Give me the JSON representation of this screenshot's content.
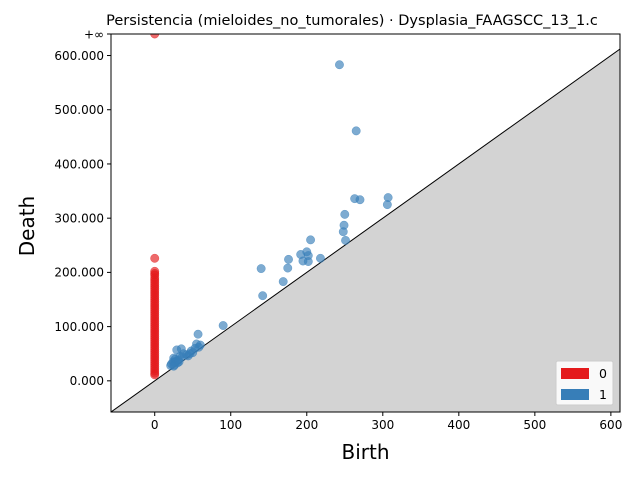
{
  "chart_data": {
    "type": "scatter",
    "title": "Persistencia (mieloides_no_tumorales) · Dysplasia_FAAGSCC_13_1.c",
    "xlabel": "Birth",
    "ylabel": "Death",
    "xlim": [
      -57.5,
      612
    ],
    "ylim": [
      -57.5,
      639.7
    ],
    "x_ticks": [
      0,
      100,
      200,
      300,
      400,
      500,
      600
    ],
    "x_tick_labels": [
      "0",
      "100",
      "200",
      "300",
      "400",
      "500",
      "600"
    ],
    "y_ticks": [
      0,
      100,
      200,
      300,
      400,
      500,
      600
    ],
    "y_tick_labels": [
      "0.000",
      "100.000",
      "200.000",
      "300.000",
      "400.000",
      "500.000",
      "600.000"
    ],
    "infinity_value": 639.7,
    "infinity_label": "+∞",
    "legend": {
      "position": "bottom-right",
      "entries": [
        "0",
        "1"
      ]
    },
    "colors": {
      "dim0": "#e41a1c",
      "dim1": "#377eb8",
      "diagonal_fill": "#d3d3d3",
      "infinity_line": "#808080"
    },
    "series": [
      {
        "name": "0",
        "points": [
          [
            0,
            639.7
          ],
          [
            0,
            226
          ],
          [
            0,
            202
          ],
          [
            0,
            198
          ],
          [
            0,
            195
          ],
          [
            0,
            190
          ],
          [
            0,
            186
          ],
          [
            0,
            182
          ],
          [
            0,
            178
          ],
          [
            0,
            174
          ],
          [
            0,
            170
          ],
          [
            0,
            166
          ],
          [
            0,
            162
          ],
          [
            0,
            158
          ],
          [
            0,
            154
          ],
          [
            0,
            150
          ],
          [
            0,
            146
          ],
          [
            0,
            142
          ],
          [
            0,
            138
          ],
          [
            0,
            134
          ],
          [
            0,
            130
          ],
          [
            0,
            126
          ],
          [
            0,
            122
          ],
          [
            0,
            118
          ],
          [
            0,
            114
          ],
          [
            0,
            110
          ],
          [
            0,
            106
          ],
          [
            0,
            102
          ],
          [
            0,
            98
          ],
          [
            0,
            94
          ],
          [
            0,
            90
          ],
          [
            0,
            86
          ],
          [
            0,
            82
          ],
          [
            0,
            78
          ],
          [
            0,
            74
          ],
          [
            0,
            70
          ],
          [
            0,
            66
          ],
          [
            0,
            62
          ],
          [
            0,
            58
          ],
          [
            0,
            54
          ],
          [
            0,
            50
          ],
          [
            0,
            46
          ],
          [
            0,
            42
          ],
          [
            0,
            38
          ],
          [
            0,
            34
          ],
          [
            0,
            30
          ],
          [
            0,
            26
          ],
          [
            0,
            22
          ],
          [
            0,
            18
          ],
          [
            0,
            14
          ],
          [
            0,
            11
          ]
        ]
      },
      {
        "name": "1",
        "points": [
          [
            243,
            583
          ],
          [
            265,
            461
          ],
          [
            263,
            336
          ],
          [
            270,
            334
          ],
          [
            307,
            338
          ],
          [
            306,
            325
          ],
          [
            250,
            307
          ],
          [
            249,
            287
          ],
          [
            248,
            275
          ],
          [
            251,
            259
          ],
          [
            205,
            260
          ],
          [
            200,
            238
          ],
          [
            192,
            233
          ],
          [
            202,
            231
          ],
          [
            218,
            226
          ],
          [
            176,
            224
          ],
          [
            195,
            221
          ],
          [
            202,
            220
          ],
          [
            140,
            207
          ],
          [
            175,
            208
          ],
          [
            169,
            183
          ],
          [
            142,
            157
          ],
          [
            90,
            102
          ],
          [
            57,
            86
          ],
          [
            55,
            68
          ],
          [
            60,
            66
          ],
          [
            58,
            62
          ],
          [
            53,
            60
          ],
          [
            35,
            59
          ],
          [
            29,
            57
          ],
          [
            48,
            55
          ],
          [
            50,
            52
          ],
          [
            38,
            50
          ],
          [
            42,
            48
          ],
          [
            44,
            46
          ],
          [
            33,
            45
          ],
          [
            36,
            44
          ],
          [
            25,
            42
          ],
          [
            27,
            40
          ],
          [
            31,
            38
          ],
          [
            28,
            36
          ],
          [
            24,
            35
          ],
          [
            26,
            34
          ],
          [
            30,
            33
          ],
          [
            22,
            31
          ],
          [
            26,
            29
          ],
          [
            21,
            28
          ],
          [
            25,
            27
          ],
          [
            32,
            35
          ],
          [
            46,
            50
          ]
        ]
      }
    ]
  }
}
